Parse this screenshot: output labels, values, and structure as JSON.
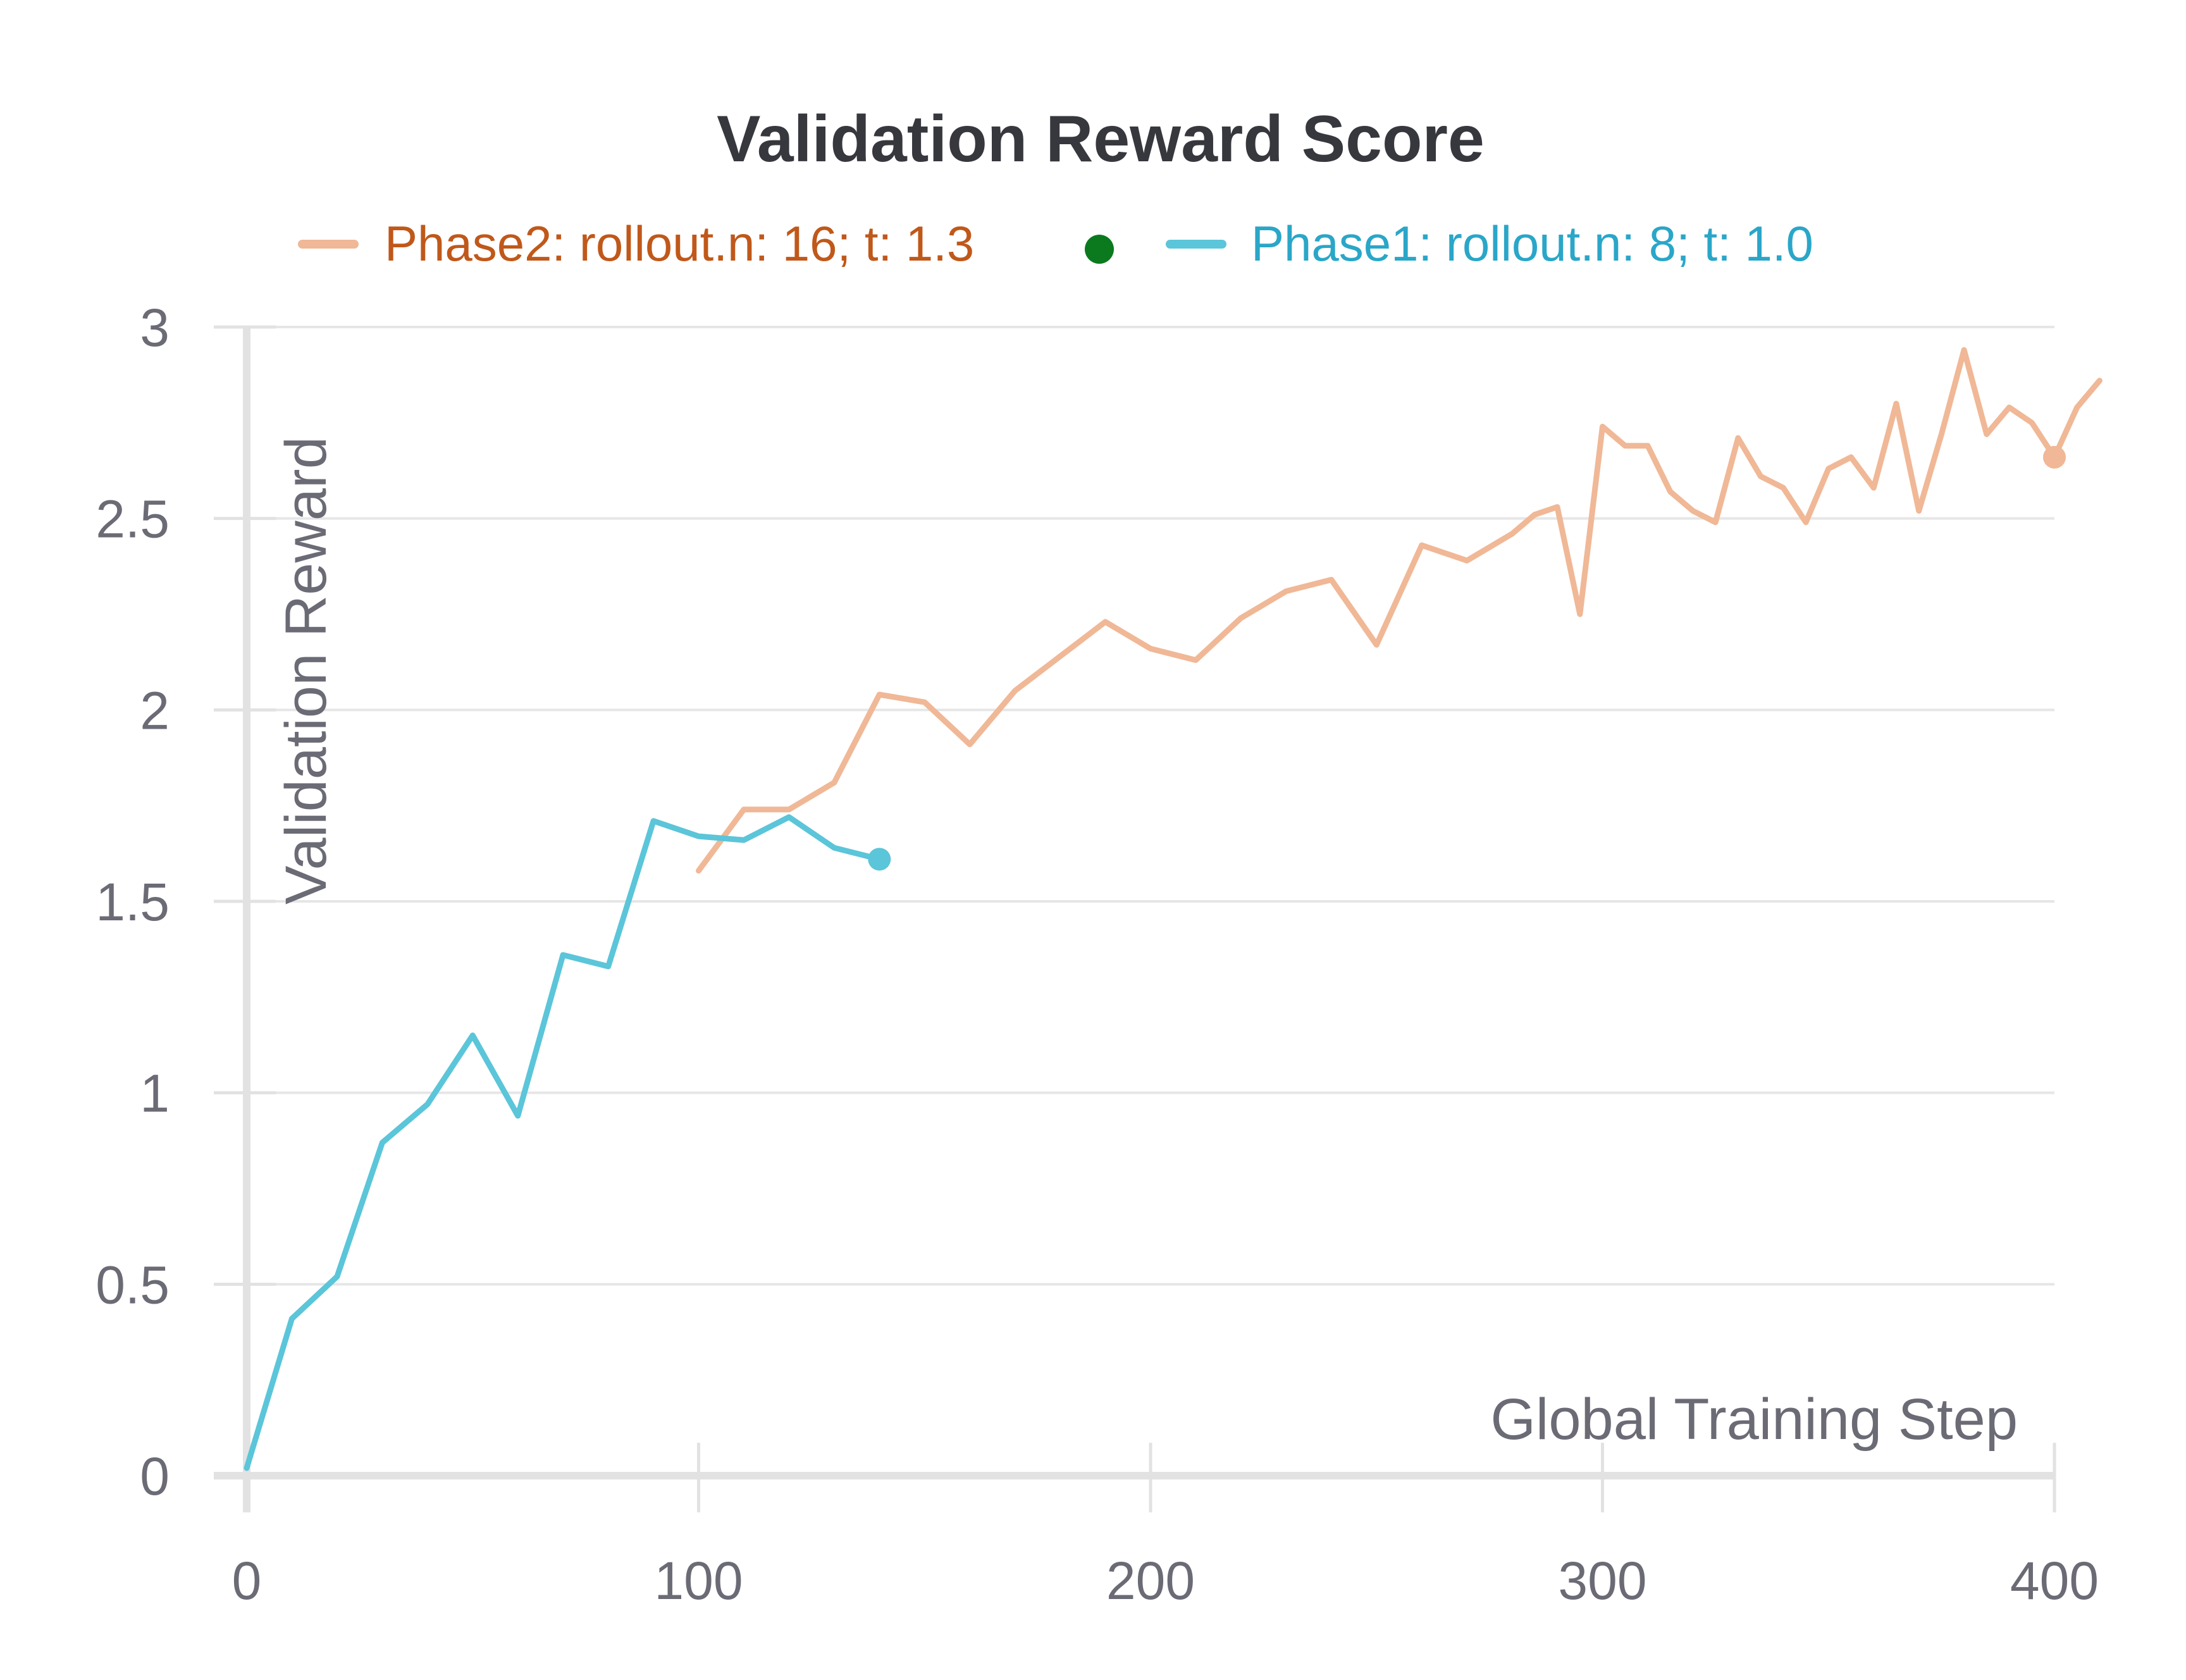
{
  "chart_data": {
    "type": "line",
    "title": "Validation Reward Score",
    "xlabel": "Global Training Step",
    "ylabel": "Validation Reward",
    "xlim": [
      0,
      400
    ],
    "ylim": [
      0,
      3
    ],
    "xticks": [
      0,
      100,
      200,
      300,
      400
    ],
    "yticks": [
      0,
      0.5,
      1,
      1.5,
      2,
      2.5,
      3
    ],
    "xtick_labels": [
      "0",
      "100",
      "200",
      "300",
      "400"
    ],
    "ytick_labels": [
      "0",
      "0.5",
      "1",
      "1.5",
      "2",
      "2.5",
      "3"
    ],
    "grid": true,
    "legend_position": "top",
    "series": [
      {
        "name": "Phase2: rollout.n: 16; t: 1.3",
        "color": "#f0b896",
        "legend_text_color": "#c0581a",
        "marker_color": "#0b7a1e",
        "x": [
          100,
          110,
          120,
          130,
          140,
          150,
          160,
          170,
          180,
          190,
          200,
          210,
          220,
          230,
          240,
          250,
          260,
          270,
          280,
          285,
          290,
          295,
          300,
          305,
          310,
          315,
          320,
          325,
          330,
          335,
          340,
          345,
          350,
          355,
          360,
          365,
          370,
          375,
          380,
          385,
          390,
          395,
          400,
          405,
          410
        ],
        "y": [
          1.58,
          1.74,
          1.74,
          1.81,
          2.04,
          2.02,
          1.91,
          2.05,
          2.14,
          2.23,
          2.16,
          2.13,
          2.24,
          2.31,
          2.34,
          2.17,
          2.43,
          2.39,
          2.46,
          2.51,
          2.53,
          2.25,
          2.74,
          2.69,
          2.69,
          2.57,
          2.52,
          2.49,
          2.71,
          2.61,
          2.58,
          2.49,
          2.63,
          2.66,
          2.58,
          2.8,
          2.52,
          2.72,
          2.94,
          2.72,
          2.79,
          2.75,
          2.66,
          2.79,
          2.86
        ]
      },
      {
        "name": "Phase1: rollout.n: 8; t: 1.0",
        "color": "#5bc5d9",
        "legend_text_color": "#2aa6c8",
        "x": [
          0,
          10,
          20,
          30,
          40,
          50,
          60,
          70,
          80,
          90,
          100,
          110,
          120,
          130,
          140
        ],
        "y": [
          0.02,
          0.41,
          0.52,
          0.87,
          0.97,
          1.15,
          0.94,
          1.36,
          1.33,
          1.71,
          1.67,
          1.66,
          1.72,
          1.64,
          1.61
        ]
      }
    ]
  }
}
